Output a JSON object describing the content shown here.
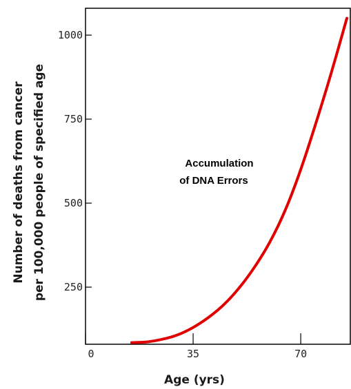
{
  "chart_data": {
    "type": "line",
    "title": "",
    "xlabel": "Age (yrs)",
    "ylabel_lines": [
      "Number of deaths from cancer",
      "per 100,000 people of specified age"
    ],
    "xlim": [
      0,
      85
    ],
    "ylim": [
      80,
      1080
    ],
    "x_ticks": [
      {
        "value": 0,
        "label": "0"
      },
      {
        "value": 35,
        "label": "35"
      },
      {
        "value": 70,
        "label": "70"
      }
    ],
    "y_ticks": [
      {
        "value": 250,
        "label": "250"
      },
      {
        "value": 500,
        "label": "500"
      },
      {
        "value": 750,
        "label": "750"
      },
      {
        "value": 1000,
        "label": "1000"
      }
    ],
    "annotation": [
      "Accumulation",
      "of DNA Errors"
    ],
    "series": [
      {
        "color": "#e00000",
        "x": [
          15,
          20,
          25,
          30,
          35,
          40,
          45,
          50,
          55,
          60,
          65,
          70,
          75,
          80,
          85
        ],
        "y": [
          85,
          87,
          95,
          108,
          130,
          160,
          198,
          248,
          310,
          385,
          480,
          600,
          740,
          890,
          1050
        ]
      }
    ],
    "grid": false
  }
}
